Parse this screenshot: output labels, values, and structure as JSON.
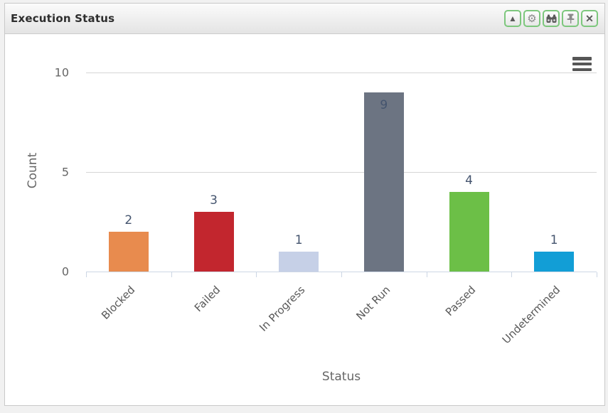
{
  "panel": {
    "title": "Execution Status",
    "toolbar": {
      "collapse": {
        "label": "collapse",
        "glyph": "▲"
      },
      "settings": {
        "label": "settings",
        "glyph": "⚙"
      },
      "search": {
        "label": "search"
      },
      "pin": {
        "label": "pin"
      },
      "close": {
        "label": "close",
        "glyph": "✕"
      }
    }
  },
  "chart_data": {
    "type": "bar",
    "title": "",
    "categories": [
      "Blocked",
      "Failed",
      "In Progress",
      "Not Run",
      "Passed",
      "Undetermined"
    ],
    "values": [
      2,
      3,
      1,
      9,
      4,
      1
    ],
    "colors": [
      "#e88b4e",
      "#c2262e",
      "#c6d0e7",
      "#6c7482",
      "#6cbf47",
      "#129ed6"
    ],
    "xlabel": "Status",
    "ylabel": "Count",
    "ylim": [
      0,
      10
    ],
    "yticks": [
      0,
      5,
      10
    ],
    "grid": true,
    "legend": "none",
    "data_labels": true,
    "label_color": "#44546e",
    "gridline_color": "#d6d6d6",
    "axis_line_color": "#ccd6e4"
  }
}
